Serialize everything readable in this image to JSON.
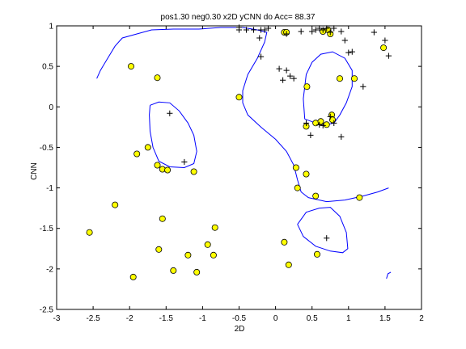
{
  "chart_data": {
    "type": "scatter",
    "title": "pos1.30 neg0.30 x2D yCNN do Acc= 88.37",
    "xlabel": "2D",
    "ylabel": "CNN",
    "xlim": [
      -3,
      2
    ],
    "ylim": [
      -2.5,
      1
    ],
    "xticks": [
      "-3",
      "-2.5",
      "-2",
      "-1.5",
      "-1",
      "-0.5",
      "0",
      "0.5",
      "1",
      "1.5",
      "2"
    ],
    "yticks": [
      "1",
      "0.5",
      "0",
      "-0.5",
      "-1",
      "-1.5",
      "-2",
      "-2.5"
    ],
    "grid": false,
    "colors": {
      "circle_fill": "#ffff00",
      "boundary": "#0000ff",
      "marker": "#000000"
    },
    "plus_points": [
      [
        -1.45,
        -0.08
      ],
      [
        -1.25,
        -0.68
      ],
      [
        -0.5,
        0.95
      ],
      [
        -0.5,
        0.98
      ],
      [
        -0.4,
        0.95
      ],
      [
        -0.3,
        0.95
      ],
      [
        -0.2,
        0.95
      ],
      [
        -0.15,
        0.95
      ],
      [
        -0.1,
        0.97
      ],
      [
        -0.2,
        0.62
      ],
      [
        -0.22,
        0.85
      ],
      [
        0.05,
        0.47
      ],
      [
        0.1,
        0.33
      ],
      [
        0.15,
        0.45
      ],
      [
        0.15,
        0.9
      ],
      [
        0.2,
        0.38
      ],
      [
        0.25,
        0.35
      ],
      [
        0.35,
        0.93
      ],
      [
        0.5,
        0.93
      ],
      [
        0.6,
        0.97
      ],
      [
        0.65,
        0.95
      ],
      [
        0.7,
        0.97
      ],
      [
        0.75,
        0.92
      ],
      [
        0.8,
        0.97
      ],
      [
        0.9,
        0.93
      ],
      [
        0.95,
        0.82
      ],
      [
        1.0,
        0.67
      ],
      [
        1.05,
        0.68
      ],
      [
        1.2,
        0.25
      ],
      [
        1.35,
        0.92
      ],
      [
        1.5,
        0.82
      ],
      [
        1.55,
        0.63
      ],
      [
        0.55,
        0.95
      ],
      [
        0.6,
        -0.22
      ],
      [
        0.65,
        -0.23
      ],
      [
        0.8,
        -0.2
      ],
      [
        0.75,
        -0.12
      ],
      [
        0.9,
        -0.37
      ],
      [
        0.48,
        -0.35
      ],
      [
        0.42,
        -0.2
      ],
      [
        0.7,
        -1.62
      ]
    ],
    "circle_points": [
      [
        -1.98,
        0.5
      ],
      [
        -1.62,
        0.36
      ],
      [
        -0.5,
        0.12
      ],
      [
        -1.9,
        -0.58
      ],
      [
        -1.75,
        -0.5
      ],
      [
        -1.62,
        -0.72
      ],
      [
        -1.55,
        -0.77
      ],
      [
        -1.48,
        -0.78
      ],
      [
        -1.12,
        -0.8
      ],
      [
        -2.2,
        -1.21
      ],
      [
        -2.55,
        -1.55
      ],
      [
        -1.55,
        -1.38
      ],
      [
        -0.83,
        -1.49
      ],
      [
        -1.6,
        -1.76
      ],
      [
        -1.2,
        -1.83
      ],
      [
        -0.93,
        -1.7
      ],
      [
        -0.85,
        -1.83
      ],
      [
        -1.4,
        -2.02
      ],
      [
        -1.08,
        -2.04
      ],
      [
        -1.95,
        -2.1
      ],
      [
        0.12,
        0.92
      ],
      [
        0.15,
        0.92
      ],
      [
        0.65,
        0.93
      ],
      [
        0.72,
        0.95
      ],
      [
        0.75,
        0.9
      ],
      [
        0.43,
        0.25
      ],
      [
        0.88,
        0.35
      ],
      [
        1.08,
        0.35
      ],
      [
        0.42,
        -0.24
      ],
      [
        0.55,
        -0.2
      ],
      [
        0.62,
        -0.18
      ],
      [
        0.7,
        -0.22
      ],
      [
        0.77,
        -0.1
      ],
      [
        0.78,
        -0.16
      ],
      [
        0.28,
        -0.75
      ],
      [
        0.3,
        -1.0
      ],
      [
        0.42,
        -0.83
      ],
      [
        0.55,
        -1.1
      ],
      [
        1.15,
        -1.12
      ],
      [
        0.12,
        -1.67
      ],
      [
        0.18,
        -1.95
      ],
      [
        0.57,
        -1.82
      ],
      [
        1.48,
        0.73
      ]
    ],
    "boundaries": [
      [
        [
          -2.45,
          0.35
        ],
        [
          -2.4,
          0.45
        ],
        [
          -2.3,
          0.6
        ],
        [
          -2.2,
          0.75
        ],
        [
          -2.1,
          0.85
        ],
        [
          -1.9,
          0.9
        ],
        [
          -1.7,
          0.95
        ],
        [
          -1.4,
          0.96
        ],
        [
          -1.05,
          0.96
        ],
        [
          -0.75,
          0.98
        ],
        [
          -0.45,
          0.98
        ],
        [
          -0.25,
          0.95
        ],
        [
          -0.12,
          0.92
        ],
        [
          -0.15,
          0.8
        ],
        [
          -0.25,
          0.6
        ],
        [
          -0.38,
          0.4
        ],
        [
          -0.45,
          0.2
        ],
        [
          -0.45,
          0.05
        ],
        [
          -0.38,
          -0.1
        ],
        [
          -0.2,
          -0.25
        ],
        [
          0.0,
          -0.4
        ],
        [
          0.15,
          -0.55
        ],
        [
          0.25,
          -0.72
        ],
        [
          0.3,
          -0.9
        ],
        [
          0.35,
          -1.05
        ],
        [
          0.45,
          -1.12
        ],
        [
          0.7,
          -1.17
        ],
        [
          0.95,
          -1.15
        ],
        [
          1.2,
          -1.1
        ],
        [
          1.4,
          -1.05
        ],
        [
          1.55,
          -1.0
        ]
      ],
      [
        [
          -1.72,
          0.02
        ],
        [
          -1.6,
          0.06
        ],
        [
          -1.45,
          0.05
        ],
        [
          -1.32,
          -0.05
        ],
        [
          -1.2,
          -0.2
        ],
        [
          -1.12,
          -0.35
        ],
        [
          -1.08,
          -0.55
        ],
        [
          -1.12,
          -0.7
        ],
        [
          -1.25,
          -0.75
        ],
        [
          -1.45,
          -0.74
        ],
        [
          -1.6,
          -0.67
        ],
        [
          -1.68,
          -0.5
        ],
        [
          -1.72,
          -0.3
        ],
        [
          -1.73,
          -0.1
        ],
        [
          -1.72,
          0.02
        ]
      ],
      [
        [
          0.4,
          -0.15
        ],
        [
          0.38,
          0.1
        ],
        [
          0.42,
          0.4
        ],
        [
          0.5,
          0.55
        ],
        [
          0.62,
          0.65
        ],
        [
          0.78,
          0.68
        ],
        [
          0.95,
          0.6
        ],
        [
          1.05,
          0.45
        ],
        [
          1.05,
          0.25
        ],
        [
          0.97,
          0.05
        ],
        [
          0.88,
          -0.1
        ],
        [
          0.8,
          -0.2
        ],
        [
          0.7,
          -0.22
        ],
        [
          0.55,
          -0.2
        ],
        [
          0.4,
          -0.15
        ]
      ],
      [
        [
          0.3,
          -1.45
        ],
        [
          0.42,
          -1.3
        ],
        [
          0.6,
          -1.25
        ],
        [
          0.75,
          -1.24
        ],
        [
          0.88,
          -1.35
        ],
        [
          0.97,
          -1.55
        ],
        [
          0.99,
          -1.75
        ],
        [
          0.92,
          -1.8
        ],
        [
          0.75,
          -1.78
        ],
        [
          0.55,
          -1.72
        ],
        [
          0.38,
          -1.6
        ],
        [
          0.3,
          -1.45
        ]
      ],
      [
        [
          1.52,
          -2.12
        ],
        [
          1.54,
          -2.06
        ],
        [
          1.58,
          -2.04
        ]
      ]
    ]
  }
}
